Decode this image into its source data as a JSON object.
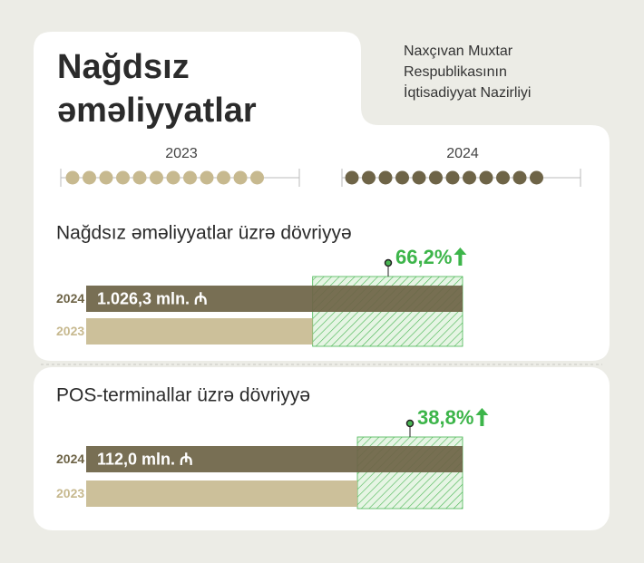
{
  "header": {
    "title_lines": [
      "Nağdsız",
      "əməliyyatlar"
    ],
    "org_lines": [
      "Naxçıvan Muxtar",
      "Respublikasının",
      "İqtisadiyyat Nazirliyi"
    ]
  },
  "timeline": {
    "years": [
      "2023",
      "2024"
    ]
  },
  "chart_data": [
    {
      "type": "bar",
      "orientation": "horizontal",
      "title": "Nağdsız əməliyyatlar üzrə dövriyyə",
      "categories": [
        "2024",
        "2023"
      ],
      "values": [
        1026.3,
        617.5
      ],
      "value_labels": [
        "1.026,3 mln. ₼",
        null
      ],
      "colors": [
        "#6e6447",
        "#c7b98f"
      ],
      "annotation": "66,2%"
    },
    {
      "type": "bar",
      "orientation": "horizontal",
      "title": "POS-terminallar üzrə dövriyyə",
      "categories": [
        "2024",
        "2023"
      ],
      "values": [
        112.0,
        80.7
      ],
      "value_labels": [
        "112,0 mln. ₼",
        null
      ],
      "colors": [
        "#6e6447",
        "#c7b98f"
      ],
      "annotation": "38,8%"
    }
  ]
}
